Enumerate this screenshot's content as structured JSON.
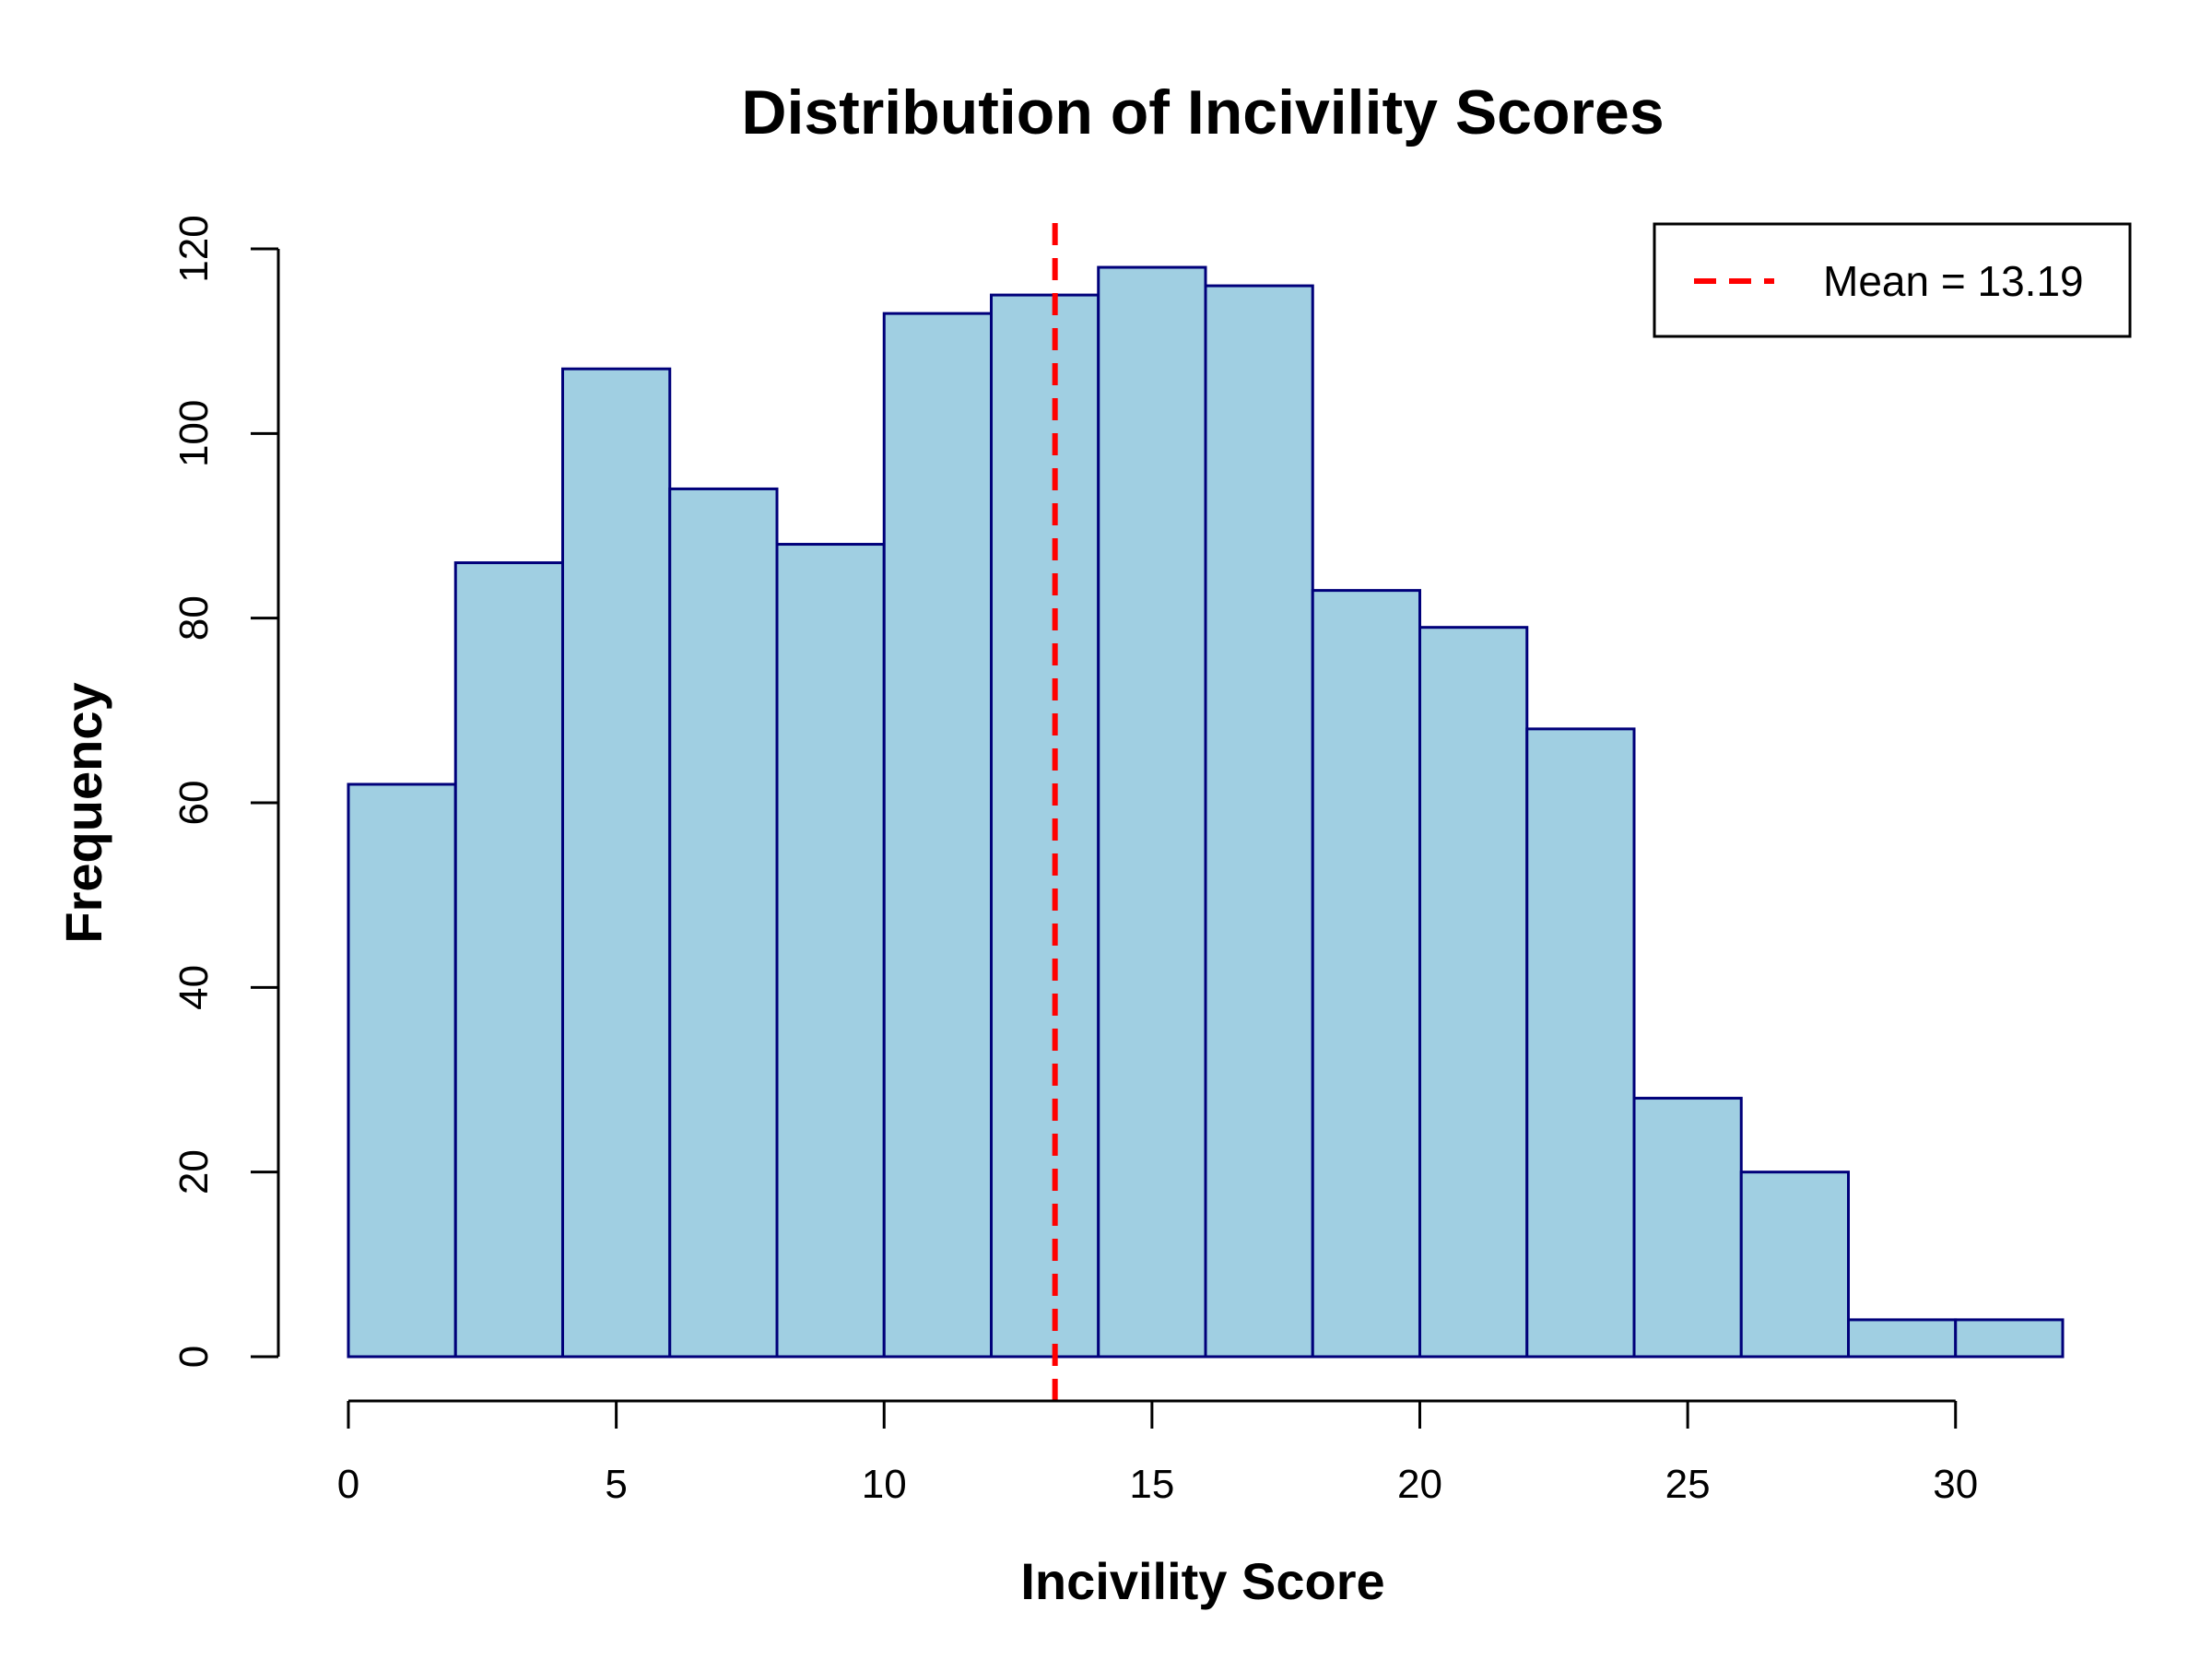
{
  "chart_data": {
    "type": "bar",
    "subtype": "histogram",
    "title": "Distribution of Incivility Scores",
    "xlabel": "Incivility Score",
    "ylabel": "Frequency",
    "bin_edges": [
      0,
      2,
      4,
      6,
      8,
      10,
      12,
      14,
      16,
      18,
      20,
      22,
      24,
      26,
      28,
      30,
      32
    ],
    "values": [
      62,
      86,
      107,
      94,
      88,
      113,
      115,
      118,
      116,
      83,
      79,
      68,
      28,
      20,
      4,
      4
    ],
    "xlim": [
      0,
      32
    ],
    "ylim": [
      0,
      120
    ],
    "x_ticks": [
      0,
      5,
      10,
      15,
      20,
      25,
      30
    ],
    "x_tick_labels": [
      "0",
      "5",
      "10",
      "15",
      "20",
      "25",
      "30"
    ],
    "y_ticks": [
      0,
      20,
      40,
      60,
      80,
      100,
      120
    ],
    "y_tick_labels": [
      "0",
      "20",
      "40",
      "60",
      "80",
      "100",
      "120"
    ],
    "bar_fill": "#a0cfe2",
    "bar_stroke": "#00007a",
    "mean_line": {
      "value": 13.19,
      "color": "#ff0000",
      "style": "dashed"
    },
    "legend": {
      "position": "top-right",
      "entries": [
        "Mean = 13.19"
      ]
    },
    "grid": false
  }
}
